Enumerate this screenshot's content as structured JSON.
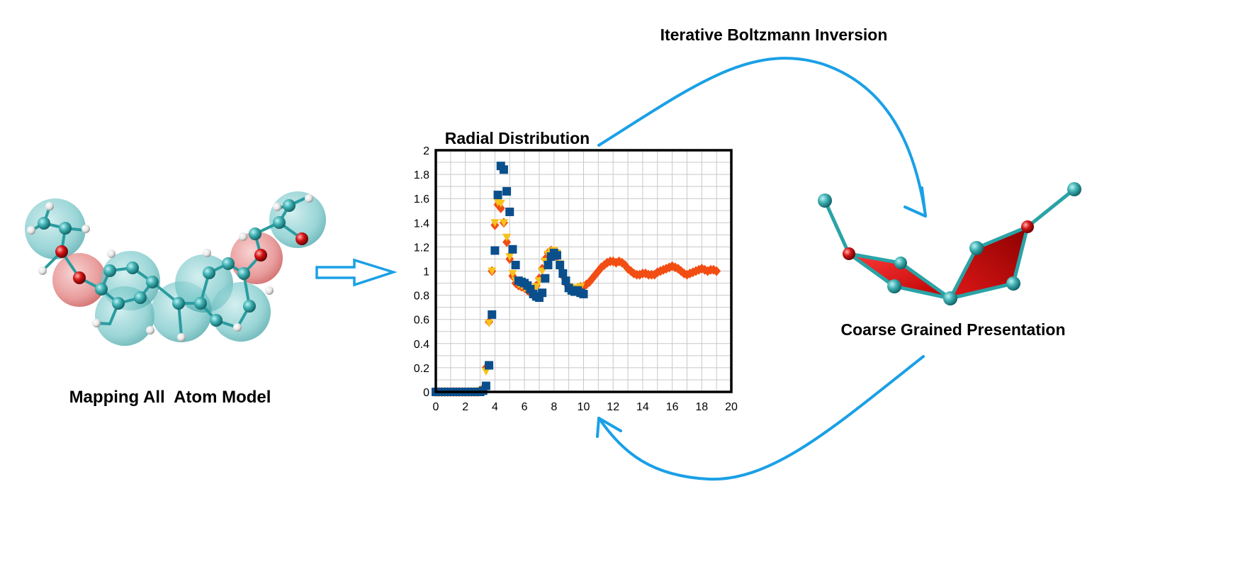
{
  "labels": {
    "all_atom_model": "Mapping All  Atom Model",
    "iterative": "Iterative Boltzmann Inversion",
    "coarse_grained": "Coarse Grained Presentation"
  },
  "colors": {
    "arrow": "#1aa0e6",
    "carbon": "#2aa3a6",
    "oxygen": "#d41010",
    "hydrogen": "#e8e8e8",
    "bead_cyan": "#6cc2c4",
    "bead_red": "#e07a7a",
    "series_orange": "#f24d12",
    "series_yellow": "#f7c21a",
    "series_blue": "#0a4f8c"
  },
  "chart_data": {
    "type": "scatter",
    "title": "Radial Distribution",
    "xlabel": "",
    "ylabel": "",
    "xlim": [
      0,
      20
    ],
    "ylim": [
      0,
      2
    ],
    "xticks": [
      "0",
      "2",
      "4",
      "6",
      "8",
      "10",
      "12",
      "14",
      "16",
      "18",
      "20"
    ],
    "yticks": [
      "0",
      "0.2",
      "0.4",
      "0.6",
      "0.8",
      "1",
      "1.2",
      "1.4",
      "1.6",
      "1.8",
      "2"
    ],
    "grid": true,
    "legend": "none",
    "series": [
      {
        "marker": "diamond",
        "color": "#f24d12",
        "x": [
          0,
          0.2,
          0.4,
          0.6,
          0.8,
          1,
          1.2,
          1.4,
          1.6,
          1.8,
          2,
          2.2,
          2.4,
          2.6,
          2.8,
          3,
          3.2,
          3.4,
          3.6,
          3.8,
          4,
          4.2,
          4.4,
          4.6,
          4.8,
          5,
          5.2,
          5.4,
          5.6,
          5.8,
          6,
          6.2,
          6.4,
          6.6,
          6.8,
          7,
          7.2,
          7.4,
          7.6,
          7.8,
          8,
          8.2,
          8.4,
          8.6,
          8.8,
          9,
          9.2,
          9.4,
          9.6,
          9.8,
          10,
          10.2,
          10.4,
          10.6,
          10.8,
          11,
          11.2,
          11.4,
          11.6,
          11.8,
          12,
          12.2,
          12.4,
          12.6,
          12.8,
          13,
          13.2,
          13.4,
          13.6,
          13.8,
          14,
          14.2,
          14.4,
          14.6,
          14.8,
          15,
          15.2,
          15.4,
          15.6,
          15.8,
          16,
          16.2,
          16.4,
          16.6,
          16.8,
          17,
          17.2,
          17.4,
          17.6,
          17.8,
          18,
          18.2,
          18.4,
          18.6,
          18.8,
          19
        ],
        "y": [
          0,
          0,
          0,
          0,
          0,
          0,
          0,
          0,
          0,
          0,
          0,
          0,
          0,
          0,
          0,
          0.01,
          0.03,
          0.2,
          0.58,
          1.0,
          1.38,
          1.55,
          1.52,
          1.4,
          1.24,
          1.1,
          0.96,
          0.9,
          0.88,
          0.87,
          0.86,
          0.84,
          0.82,
          0.84,
          0.88,
          0.94,
          1.02,
          1.1,
          1.15,
          1.17,
          1.16,
          1.12,
          1.04,
          0.96,
          0.9,
          0.87,
          0.85,
          0.85,
          0.86,
          0.87,
          0.87,
          0.89,
          0.91,
          0.94,
          0.97,
          1.0,
          1.03,
          1.05,
          1.07,
          1.08,
          1.08,
          1.07,
          1.08,
          1.07,
          1.05,
          1.02,
          1.0,
          0.98,
          0.97,
          0.97,
          0.98,
          0.98,
          0.97,
          0.97,
          0.97,
          0.99,
          1.0,
          1.01,
          1.02,
          1.03,
          1.04,
          1.03,
          1.02,
          1.0,
          0.98,
          0.97,
          0.98,
          0.99,
          1.0,
          1.01,
          1.02,
          1.01,
          1.0,
          1.01,
          1.01,
          1.0
        ]
      },
      {
        "marker": "triangle-down",
        "color": "#f7c21a",
        "x": [
          0,
          0.2,
          0.4,
          0.6,
          0.8,
          1,
          1.2,
          1.4,
          1.6,
          1.8,
          2,
          2.2,
          2.4,
          2.6,
          2.8,
          3,
          3.2,
          3.4,
          3.6,
          3.8,
          4,
          4.2,
          4.4,
          4.6,
          4.8,
          5,
          5.2,
          5.4,
          5.6,
          5.8,
          6,
          6.2,
          6.4,
          6.6,
          6.8,
          7,
          7.2,
          7.4,
          7.6,
          7.8,
          8,
          8.2,
          8.4,
          8.6,
          8.8,
          9,
          9.2,
          9.4,
          9.6,
          9.8
        ],
        "y": [
          0,
          0,
          0,
          0,
          0,
          0,
          0,
          0,
          0,
          0,
          0,
          0,
          0,
          0,
          0,
          0.01,
          0.02,
          0.17,
          0.57,
          1.0,
          1.4,
          1.57,
          1.56,
          1.4,
          1.28,
          1.12,
          0.98,
          0.92,
          0.89,
          0.88,
          0.86,
          0.85,
          0.84,
          0.85,
          0.87,
          0.92,
          1.0,
          1.08,
          1.14,
          1.16,
          1.17,
          1.15,
          1.06,
          0.97,
          0.9,
          0.87,
          0.86,
          0.86,
          0.86,
          0.87
        ]
      },
      {
        "marker": "square",
        "color": "#0a4f8c",
        "x": [
          0,
          0.2,
          0.4,
          0.6,
          0.8,
          1,
          1.2,
          1.4,
          1.6,
          1.8,
          2,
          2.2,
          2.4,
          2.6,
          2.8,
          3,
          3.2,
          3.4,
          3.6,
          3.8,
          4,
          4.2,
          4.4,
          4.6,
          4.8,
          5,
          5.2,
          5.4,
          5.6,
          5.8,
          6,
          6.2,
          6.4,
          6.6,
          6.8,
          7,
          7.2,
          7.4,
          7.6,
          7.8,
          8,
          8.2,
          8.4,
          8.6,
          8.8,
          9,
          9.2,
          9.4,
          9.6,
          9.8,
          10
        ],
        "y": [
          0,
          0,
          0,
          0,
          0,
          0,
          0,
          0,
          0,
          0,
          0,
          0,
          0,
          0,
          0,
          0,
          0.01,
          0.05,
          0.22,
          0.64,
          1.17,
          1.63,
          1.87,
          1.84,
          1.66,
          1.49,
          1.18,
          1.05,
          0.92,
          0.91,
          0.9,
          0.88,
          0.85,
          0.81,
          0.79,
          0.78,
          0.82,
          0.94,
          1.05,
          1.12,
          1.15,
          1.13,
          1.05,
          0.98,
          0.92,
          0.86,
          0.84,
          0.83,
          0.84,
          0.82,
          0.81
        ]
      }
    ]
  }
}
